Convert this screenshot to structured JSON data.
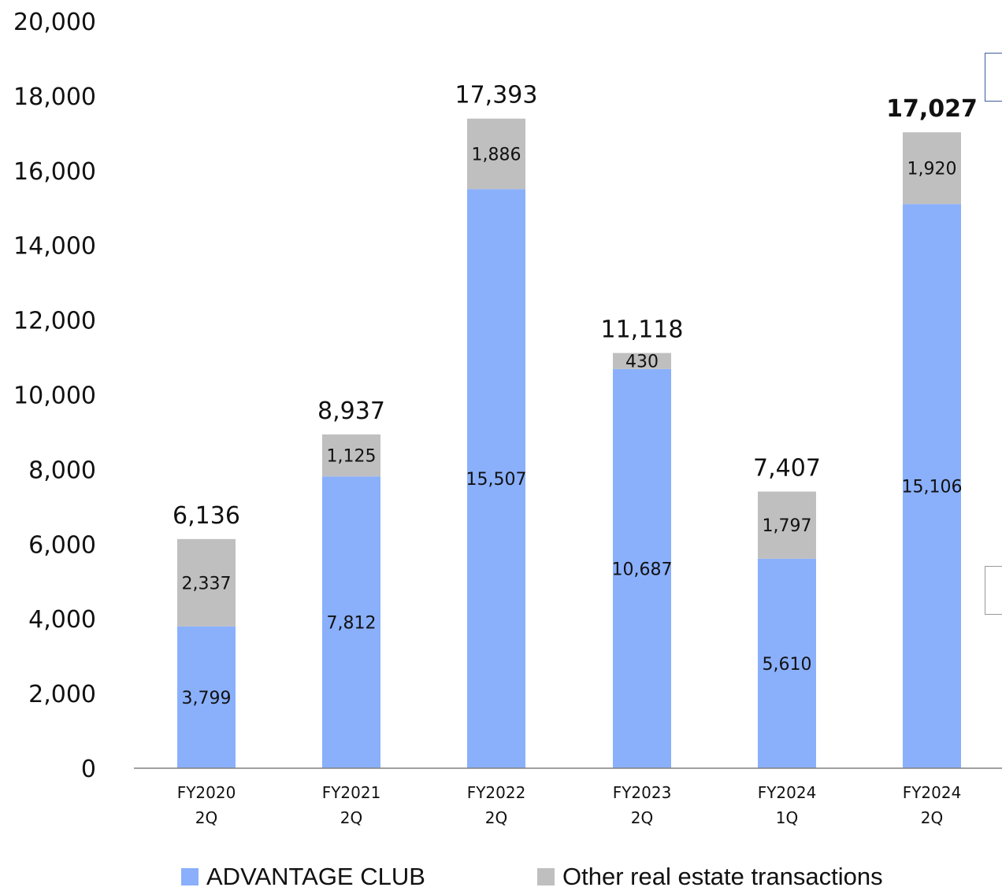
{
  "chart_data": {
    "type": "bar",
    "stacked": true,
    "categories": [
      [
        "FY2020",
        "2Q"
      ],
      [
        "FY2021",
        "2Q"
      ],
      [
        "FY2022",
        "2Q"
      ],
      [
        "FY2023",
        "2Q"
      ],
      [
        "FY2024",
        "1Q"
      ],
      [
        "FY2024",
        "2Q"
      ]
    ],
    "series": [
      {
        "name": "ADVANTAGE CLUB",
        "color": "#8AB0FC",
        "values": [
          3799,
          7812,
          15507,
          10687,
          5610,
          15106
        ],
        "labels": [
          "3,799",
          "7,812",
          "15,507",
          "10,687",
          "5,610",
          "15,106"
        ]
      },
      {
        "name": "Other real estate transactions",
        "color": "#BFBFBF",
        "values": [
          2337,
          1125,
          1886,
          430,
          1797,
          1920
        ],
        "labels": [
          "2,337",
          "1,125",
          "1,886",
          "430",
          "1,797",
          "1,920"
        ]
      }
    ],
    "totals": [
      6136,
      8937,
      17393,
      11118,
      7407,
      17027
    ],
    "total_labels": [
      "6,136",
      "8,937",
      "17,393",
      "11,118",
      "7,407",
      "17,027"
    ],
    "highlight_total_index": 5,
    "ylim": [
      0,
      20000
    ],
    "yticks": [
      0,
      2000,
      4000,
      6000,
      8000,
      10000,
      12000,
      14000,
      16000,
      18000,
      20000
    ],
    "ytick_labels": [
      "0",
      "2,000",
      "4,000",
      "6,000",
      "8,000",
      "10,000",
      "12,000",
      "14,000",
      "16,000",
      "18,000",
      "20,000"
    ],
    "grid": false,
    "legend_position": "bottom",
    "title": "",
    "xlabel": "",
    "ylabel": ""
  },
  "colors": {
    "axis": "#808080",
    "text": "#111111",
    "callout_top": "#3F5A9E",
    "callout_bottom": "#999999"
  }
}
